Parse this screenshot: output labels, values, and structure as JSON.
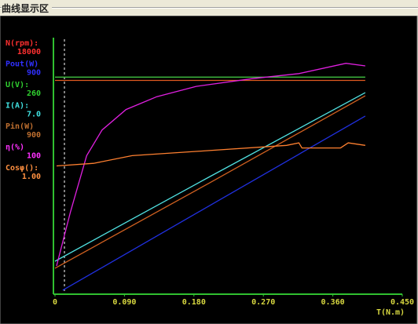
{
  "panel_title": "曲线显示区",
  "chart_data": {
    "type": "line",
    "x_label": "T(N.m)",
    "xlim": [
      0,
      0.45
    ],
    "xticks": [
      0,
      {
        "value": 0.09,
        "label": "0.090"
      },
      {
        "value": 0.18,
        "label": "0.180"
      },
      {
        "value": 0.27,
        "label": "0.270"
      },
      {
        "value": 0.36,
        "label": "0.360"
      },
      {
        "value": 0.45,
        "label": "0.450"
      }
    ],
    "series": [
      {
        "name": "N(rpm):",
        "color": "#ff3030",
        "line_color": "#e05a20",
        "scale": 18000,
        "x": [
          0,
          0.402
        ],
        "values": [
          15000,
          15000
        ]
      },
      {
        "name": "Pout(W)",
        "color": "#3030ff",
        "line_color": "#2030e0",
        "scale": 900,
        "x": [
          0.01,
          0.402
        ],
        "values": [
          14,
          625
        ]
      },
      {
        "name": "U(V):",
        "color": "#30d030",
        "line_color": "#40c040",
        "scale": 260,
        "x": [
          0,
          0.402
        ],
        "values": [
          220,
          220
        ]
      },
      {
        "name": "I(A):",
        "color": "#40e0e0",
        "line_color": "#50e0e0",
        "scale": {
          "value": 7,
          "label": "7.0"
        },
        "x": [
          0,
          0.2,
          0.402
        ],
        "values": [
          0.9,
          3.2,
          5.5
        ]
      },
      {
        "name": "Pin(W)",
        "color": "#c07030",
        "line_color": "#d06020",
        "scale": 900,
        "x": [
          0,
          0.2,
          0.402
        ],
        "values": [
          91,
          390,
          696
        ]
      },
      {
        "name": "η(%)",
        "color": "#ff30ff",
        "line_color": "#e020e0",
        "scale": 100,
        "x": [
          0.002,
          0.02,
          0.041,
          0.061,
          0.092,
          0.132,
          0.183,
          0.255,
          0.316,
          0.377,
          0.402
        ],
        "values": [
          11,
          32,
          54,
          64,
          72,
          77,
          81,
          84,
          86,
          90,
          89
        ]
      },
      {
        "name": "Cosφ():",
        "color": "#ff9040",
        "line_color": "#ff8030",
        "scale": {
          "value": 1,
          "label": "1.00"
        },
        "x": [
          0.002,
          0.05,
          0.1,
          0.2,
          0.3,
          0.316,
          0.32,
          0.37,
          0.38,
          0.402
        ],
        "values": [
          0.5,
          0.51,
          0.54,
          0.56,
          0.58,
          0.59,
          0.57,
          0.57,
          0.59,
          0.58
        ]
      }
    ]
  }
}
